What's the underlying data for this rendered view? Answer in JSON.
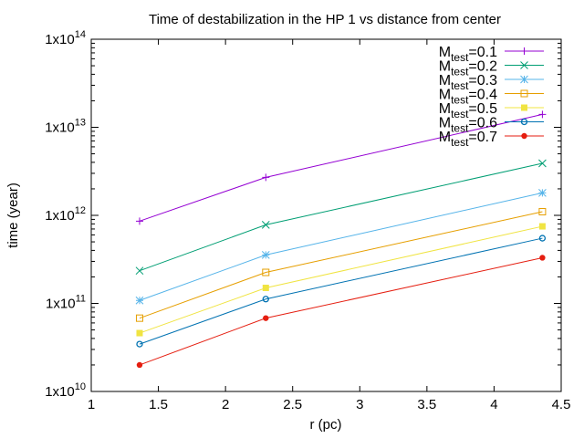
{
  "chart_data": {
    "type": "line",
    "title": "Time of destabilization in the HP 1 vs distance from center",
    "xlabel": "r (pc)",
    "ylabel": "time (year)",
    "xlim": [
      1,
      4.5
    ],
    "ylim": [
      10000000000.0,
      100000000000000.0
    ],
    "yscale": "log",
    "grid": false,
    "legend_position": "top-right",
    "x_ticks": [
      "1",
      "1.5",
      "2",
      "2.5",
      "3",
      "3.5",
      "4",
      "4.5"
    ],
    "x_tick_values": [
      1,
      1.5,
      2,
      2.5,
      3,
      3.5,
      4,
      4.5
    ],
    "y_ticks": [
      {
        "value": 10000000000.0,
        "base": "1x10",
        "exp": "10"
      },
      {
        "value": 100000000000.0,
        "base": "1x10",
        "exp": "11"
      },
      {
        "value": 1000000000000.0,
        "base": "1x10",
        "exp": "12"
      },
      {
        "value": 10000000000000.0,
        "base": "1x10",
        "exp": "13"
      },
      {
        "value": 100000000000000.0,
        "base": "1x10",
        "exp": "14"
      }
    ],
    "x": [
      1.36,
      2.3,
      4.36
    ],
    "series": [
      {
        "name": "M",
        "sub": "test",
        "suffix": "=0.1",
        "color": "#9400d3",
        "marker": "plus",
        "values": [
          860000000000.0,
          2700000000000.0,
          14000000000000.0
        ]
      },
      {
        "name": "M",
        "sub": "test",
        "suffix": "=0.2",
        "color": "#009e73",
        "marker": "cross",
        "values": [
          235000000000.0,
          780000000000.0,
          3900000000000.0
        ]
      },
      {
        "name": "M",
        "sub": "test",
        "suffix": "=0.3",
        "color": "#56b4e9",
        "marker": "star",
        "values": [
          108000000000.0,
          355000000000.0,
          1800000000000.0
        ]
      },
      {
        "name": "M",
        "sub": "test",
        "suffix": "=0.4",
        "color": "#e69f00",
        "marker": "square-open",
        "values": [
          68000000000.0,
          225000000000.0,
          1100000000000.0
        ]
      },
      {
        "name": "M",
        "sub": "test",
        "suffix": "=0.5",
        "color": "#f0e442",
        "marker": "square-filled",
        "values": [
          46000000000.0,
          150000000000.0,
          750000000000.0
        ]
      },
      {
        "name": "M",
        "sub": "test",
        "suffix": "=0.6",
        "color": "#0072b2",
        "marker": "circle-open",
        "values": [
          34500000000.0,
          112000000000.0,
          550000000000.0
        ]
      },
      {
        "name": "M",
        "sub": "test",
        "suffix": "=0.7",
        "color": "#e51e10",
        "marker": "circle-filled",
        "values": [
          20000000000.0,
          68000000000.0,
          330000000000.0
        ]
      }
    ]
  }
}
